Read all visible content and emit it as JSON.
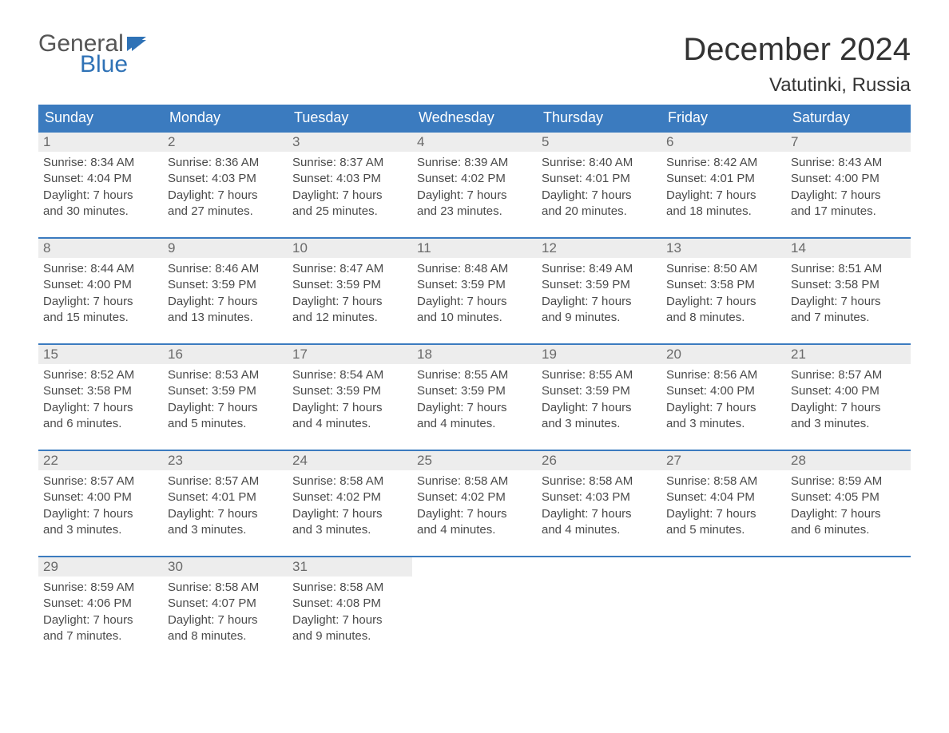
{
  "brand": {
    "word1": "General",
    "word2": "Blue",
    "text_color": "#555555",
    "accent_color": "#2f72b6"
  },
  "title": {
    "month": "December 2024",
    "location": "Vatutinki, Russia"
  },
  "colors": {
    "header_bg": "#3b7bbf",
    "header_text": "#ffffff",
    "row_border": "#3b7bbf",
    "daynum_bg": "#ededed",
    "daynum_text": "#6a6a6a",
    "body_text": "#4a4a4a",
    "page_bg": "#ffffff"
  },
  "typography": {
    "month_title_fontsize": 40,
    "location_fontsize": 24,
    "weekday_fontsize": 18,
    "daynum_fontsize": 17,
    "body_fontsize": 15
  },
  "weekdays": [
    "Sunday",
    "Monday",
    "Tuesday",
    "Wednesday",
    "Thursday",
    "Friday",
    "Saturday"
  ],
  "labels": {
    "sunrise": "Sunrise:",
    "sunset": "Sunset:",
    "daylight": "Daylight:"
  },
  "weeks": [
    [
      {
        "n": "1",
        "sunrise": "8:34 AM",
        "sunset": "4:04 PM",
        "daylight1": "7 hours",
        "daylight2": "and 30 minutes."
      },
      {
        "n": "2",
        "sunrise": "8:36 AM",
        "sunset": "4:03 PM",
        "daylight1": "7 hours",
        "daylight2": "and 27 minutes."
      },
      {
        "n": "3",
        "sunrise": "8:37 AM",
        "sunset": "4:03 PM",
        "daylight1": "7 hours",
        "daylight2": "and 25 minutes."
      },
      {
        "n": "4",
        "sunrise": "8:39 AM",
        "sunset": "4:02 PM",
        "daylight1": "7 hours",
        "daylight2": "and 23 minutes."
      },
      {
        "n": "5",
        "sunrise": "8:40 AM",
        "sunset": "4:01 PM",
        "daylight1": "7 hours",
        "daylight2": "and 20 minutes."
      },
      {
        "n": "6",
        "sunrise": "8:42 AM",
        "sunset": "4:01 PM",
        "daylight1": "7 hours",
        "daylight2": "and 18 minutes."
      },
      {
        "n": "7",
        "sunrise": "8:43 AM",
        "sunset": "4:00 PM",
        "daylight1": "7 hours",
        "daylight2": "and 17 minutes."
      }
    ],
    [
      {
        "n": "8",
        "sunrise": "8:44 AM",
        "sunset": "4:00 PM",
        "daylight1": "7 hours",
        "daylight2": "and 15 minutes."
      },
      {
        "n": "9",
        "sunrise": "8:46 AM",
        "sunset": "3:59 PM",
        "daylight1": "7 hours",
        "daylight2": "and 13 minutes."
      },
      {
        "n": "10",
        "sunrise": "8:47 AM",
        "sunset": "3:59 PM",
        "daylight1": "7 hours",
        "daylight2": "and 12 minutes."
      },
      {
        "n": "11",
        "sunrise": "8:48 AM",
        "sunset": "3:59 PM",
        "daylight1": "7 hours",
        "daylight2": "and 10 minutes."
      },
      {
        "n": "12",
        "sunrise": "8:49 AM",
        "sunset": "3:59 PM",
        "daylight1": "7 hours",
        "daylight2": "and 9 minutes."
      },
      {
        "n": "13",
        "sunrise": "8:50 AM",
        "sunset": "3:58 PM",
        "daylight1": "7 hours",
        "daylight2": "and 8 minutes."
      },
      {
        "n": "14",
        "sunrise": "8:51 AM",
        "sunset": "3:58 PM",
        "daylight1": "7 hours",
        "daylight2": "and 7 minutes."
      }
    ],
    [
      {
        "n": "15",
        "sunrise": "8:52 AM",
        "sunset": "3:58 PM",
        "daylight1": "7 hours",
        "daylight2": "and 6 minutes."
      },
      {
        "n": "16",
        "sunrise": "8:53 AM",
        "sunset": "3:59 PM",
        "daylight1": "7 hours",
        "daylight2": "and 5 minutes."
      },
      {
        "n": "17",
        "sunrise": "8:54 AM",
        "sunset": "3:59 PM",
        "daylight1": "7 hours",
        "daylight2": "and 4 minutes."
      },
      {
        "n": "18",
        "sunrise": "8:55 AM",
        "sunset": "3:59 PM",
        "daylight1": "7 hours",
        "daylight2": "and 4 minutes."
      },
      {
        "n": "19",
        "sunrise": "8:55 AM",
        "sunset": "3:59 PM",
        "daylight1": "7 hours",
        "daylight2": "and 3 minutes."
      },
      {
        "n": "20",
        "sunrise": "8:56 AM",
        "sunset": "4:00 PM",
        "daylight1": "7 hours",
        "daylight2": "and 3 minutes."
      },
      {
        "n": "21",
        "sunrise": "8:57 AM",
        "sunset": "4:00 PM",
        "daylight1": "7 hours",
        "daylight2": "and 3 minutes."
      }
    ],
    [
      {
        "n": "22",
        "sunrise": "8:57 AM",
        "sunset": "4:00 PM",
        "daylight1": "7 hours",
        "daylight2": "and 3 minutes."
      },
      {
        "n": "23",
        "sunrise": "8:57 AM",
        "sunset": "4:01 PM",
        "daylight1": "7 hours",
        "daylight2": "and 3 minutes."
      },
      {
        "n": "24",
        "sunrise": "8:58 AM",
        "sunset": "4:02 PM",
        "daylight1": "7 hours",
        "daylight2": "and 3 minutes."
      },
      {
        "n": "25",
        "sunrise": "8:58 AM",
        "sunset": "4:02 PM",
        "daylight1": "7 hours",
        "daylight2": "and 4 minutes."
      },
      {
        "n": "26",
        "sunrise": "8:58 AM",
        "sunset": "4:03 PM",
        "daylight1": "7 hours",
        "daylight2": "and 4 minutes."
      },
      {
        "n": "27",
        "sunrise": "8:58 AM",
        "sunset": "4:04 PM",
        "daylight1": "7 hours",
        "daylight2": "and 5 minutes."
      },
      {
        "n": "28",
        "sunrise": "8:59 AM",
        "sunset": "4:05 PM",
        "daylight1": "7 hours",
        "daylight2": "and 6 minutes."
      }
    ],
    [
      {
        "n": "29",
        "sunrise": "8:59 AM",
        "sunset": "4:06 PM",
        "daylight1": "7 hours",
        "daylight2": "and 7 minutes."
      },
      {
        "n": "30",
        "sunrise": "8:58 AM",
        "sunset": "4:07 PM",
        "daylight1": "7 hours",
        "daylight2": "and 8 minutes."
      },
      {
        "n": "31",
        "sunrise": "8:58 AM",
        "sunset": "4:08 PM",
        "daylight1": "7 hours",
        "daylight2": "and 9 minutes."
      },
      null,
      null,
      null,
      null
    ]
  ]
}
